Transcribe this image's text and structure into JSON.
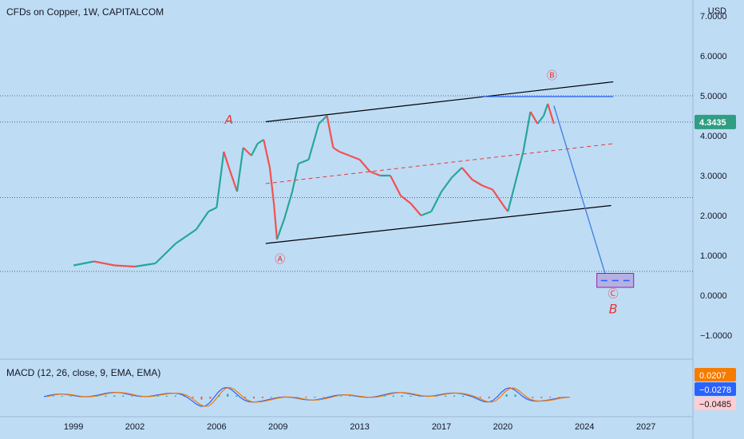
{
  "header": {
    "title": "CFDs on Copper, 1W, CAPITALCOM"
  },
  "currency": "USD",
  "chart_data": {
    "type": "candlestick",
    "y_ticks": [
      "7.0000",
      "6.0000",
      "5.0000",
      "4.0000",
      "3.0000",
      "2.0000",
      "1.0000",
      "0.0000",
      "−1.0000"
    ],
    "y_tick_values": [
      7,
      6,
      5,
      4,
      3,
      2,
      1,
      0,
      -1
    ],
    "ylim": [
      -1.6,
      7.4
    ],
    "x_ticks": [
      "1999",
      "2002",
      "2006",
      "2009",
      "2013",
      "2017",
      "2020",
      "2024",
      "2027"
    ],
    "x_tick_values": [
      1999,
      2002,
      2006,
      2009,
      2013,
      2017,
      2020,
      2024,
      2027
    ],
    "xlim": [
      1995.4,
      2029.3
    ],
    "last_price": "4.3435",
    "last_price_value": 4.3435,
    "accent_color": "#2f9e82",
    "series": [
      {
        "x": [
          1999.0,
          2000.0,
          2001.0,
          2002.0,
          2003.0,
          2004.0,
          2005.0,
          2005.6,
          2006.0,
          2006.35,
          2006.6,
          2007.0,
          2007.3,
          2007.7,
          2008.0,
          2008.3,
          2008.6,
          2008.8,
          2008.95,
          2009.3,
          2009.7,
          2010.0,
          2010.5,
          2011.0,
          2011.4,
          2011.7,
          2012.0,
          2012.5,
          2013.0,
          2013.5,
          2014.0,
          2014.5,
          2015.0,
          2015.5,
          2016.0,
          2016.5,
          2017.0,
          2017.5,
          2018.0,
          2018.5,
          2019.0,
          2019.5,
          2020.1,
          2020.25,
          2020.6,
          2021.0,
          2021.35,
          2021.7,
          2022.0,
          2022.2,
          2022.5
        ],
        "values": [
          0.75,
          0.85,
          0.75,
          0.72,
          0.8,
          1.3,
          1.65,
          2.1,
          2.2,
          3.6,
          3.2,
          2.6,
          3.7,
          3.5,
          3.8,
          3.9,
          3.2,
          2.3,
          1.4,
          1.9,
          2.6,
          3.3,
          3.4,
          4.3,
          4.5,
          3.7,
          3.6,
          3.5,
          3.4,
          3.1,
          3.0,
          3.0,
          2.5,
          2.3,
          2.0,
          2.1,
          2.6,
          2.95,
          3.2,
          2.9,
          2.75,
          2.65,
          2.2,
          2.1,
          2.8,
          3.6,
          4.6,
          4.3,
          4.5,
          4.8,
          4.3
        ]
      }
    ],
    "annotations": [
      "A",
      "Ⓐ",
      "Ⓑ",
      "Ⓒ",
      "B"
    ],
    "indicator": {
      "label": "MACD (12, 26, close, 9, EMA, EMA)",
      "values": [
        "0.0207",
        "−0.0278",
        "−0.0485"
      ],
      "colors": [
        "#f57c00",
        "#2962ff",
        "#ffcdd2"
      ]
    }
  }
}
